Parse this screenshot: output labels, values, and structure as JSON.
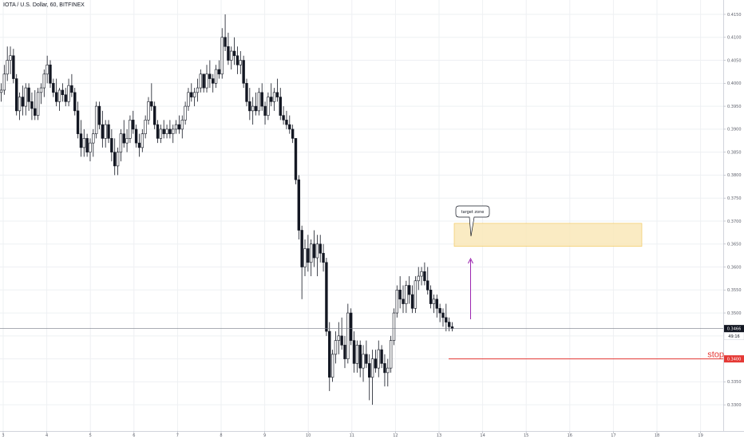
{
  "header": {
    "symbol_title": "IOTA / U.S. Dollar, 60, BITFINEX"
  },
  "annotations": {
    "callout_text": "target zone",
    "stop_text": "stop",
    "last_price": "0.3466",
    "countdown": "49:16",
    "stop_price": "0.3400"
  },
  "colors": {
    "candle": "#131722",
    "target_fill": "#f9e8b8",
    "target_border": "#f0c453",
    "arrow": "#9c27b0",
    "stop": "#e53935",
    "last_price_line": "#787b86",
    "grid": "#eef0f3"
  },
  "chart_data": {
    "type": "candlestick",
    "symbol": "IOTA / U.S. Dollar",
    "interval": "60",
    "exchange": "BITFINEX",
    "y_ticks": [
      0.415,
      0.41,
      0.405,
      0.4,
      0.395,
      0.39,
      0.385,
      0.38,
      0.375,
      0.37,
      0.365,
      0.36,
      0.355,
      0.35,
      0.345,
      0.34,
      0.335,
      0.33
    ],
    "x_ticks": [
      "3",
      "4",
      "5",
      "6",
      "7",
      "8",
      "9",
      "10",
      "11",
      "12",
      "13",
      "14",
      "15",
      "16",
      "17",
      "18",
      "19"
    ],
    "last_price": 0.3466,
    "stop_level": 0.34,
    "target_zone": {
      "low": 0.3645,
      "high": 0.3695
    },
    "candles": [
      {
        "o": 0.398,
        "h": 0.4,
        "l": 0.396,
        "c": 0.3985
      },
      {
        "o": 0.3985,
        "h": 0.404,
        "l": 0.3975,
        "c": 0.402
      },
      {
        "o": 0.402,
        "h": 0.408,
        "l": 0.4005,
        "c": 0.405
      },
      {
        "o": 0.405,
        "h": 0.408,
        "l": 0.402,
        "c": 0.406
      },
      {
        "o": 0.406,
        "h": 0.4075,
        "l": 0.4,
        "c": 0.401
      },
      {
        "o": 0.401,
        "h": 0.402,
        "l": 0.393,
        "c": 0.394
      },
      {
        "o": 0.394,
        "h": 0.398,
        "l": 0.392,
        "c": 0.397
      },
      {
        "o": 0.397,
        "h": 0.3995,
        "l": 0.393,
        "c": 0.395
      },
      {
        "o": 0.395,
        "h": 0.4,
        "l": 0.393,
        "c": 0.399
      },
      {
        "o": 0.399,
        "h": 0.4,
        "l": 0.394,
        "c": 0.396
      },
      {
        "o": 0.396,
        "h": 0.398,
        "l": 0.392,
        "c": 0.3945
      },
      {
        "o": 0.3945,
        "h": 0.3985,
        "l": 0.392,
        "c": 0.393
      },
      {
        "o": 0.393,
        "h": 0.399,
        "l": 0.392,
        "c": 0.398
      },
      {
        "o": 0.398,
        "h": 0.4,
        "l": 0.3955,
        "c": 0.399
      },
      {
        "o": 0.399,
        "h": 0.403,
        "l": 0.397,
        "c": 0.402
      },
      {
        "o": 0.402,
        "h": 0.406,
        "l": 0.4,
        "c": 0.404
      },
      {
        "o": 0.404,
        "h": 0.405,
        "l": 0.399,
        "c": 0.4
      },
      {
        "o": 0.4,
        "h": 0.401,
        "l": 0.397,
        "c": 0.398
      },
      {
        "o": 0.398,
        "h": 0.401,
        "l": 0.395,
        "c": 0.396
      },
      {
        "o": 0.396,
        "h": 0.399,
        "l": 0.394,
        "c": 0.3985
      },
      {
        "o": 0.3985,
        "h": 0.4,
        "l": 0.396,
        "c": 0.3975
      },
      {
        "o": 0.3975,
        "h": 0.399,
        "l": 0.395,
        "c": 0.396
      },
      {
        "o": 0.396,
        "h": 0.401,
        "l": 0.395,
        "c": 0.3995
      },
      {
        "o": 0.3995,
        "h": 0.402,
        "l": 0.397,
        "c": 0.398
      },
      {
        "o": 0.398,
        "h": 0.399,
        "l": 0.393,
        "c": 0.394
      },
      {
        "o": 0.394,
        "h": 0.396,
        "l": 0.388,
        "c": 0.389
      },
      {
        "o": 0.389,
        "h": 0.392,
        "l": 0.384,
        "c": 0.386
      },
      {
        "o": 0.386,
        "h": 0.39,
        "l": 0.384,
        "c": 0.388
      },
      {
        "o": 0.388,
        "h": 0.389,
        "l": 0.384,
        "c": 0.385
      },
      {
        "o": 0.385,
        "h": 0.388,
        "l": 0.383,
        "c": 0.387
      },
      {
        "o": 0.387,
        "h": 0.39,
        "l": 0.384,
        "c": 0.389
      },
      {
        "o": 0.389,
        "h": 0.396,
        "l": 0.388,
        "c": 0.395
      },
      {
        "o": 0.395,
        "h": 0.396,
        "l": 0.39,
        "c": 0.391
      },
      {
        "o": 0.391,
        "h": 0.394,
        "l": 0.386,
        "c": 0.388
      },
      {
        "o": 0.388,
        "h": 0.392,
        "l": 0.386,
        "c": 0.391
      },
      {
        "o": 0.391,
        "h": 0.392,
        "l": 0.387,
        "c": 0.388
      },
      {
        "o": 0.388,
        "h": 0.39,
        "l": 0.383,
        "c": 0.385
      },
      {
        "o": 0.385,
        "h": 0.388,
        "l": 0.38,
        "c": 0.382
      },
      {
        "o": 0.382,
        "h": 0.386,
        "l": 0.38,
        "c": 0.385
      },
      {
        "o": 0.385,
        "h": 0.39,
        "l": 0.383,
        "c": 0.389
      },
      {
        "o": 0.389,
        "h": 0.392,
        "l": 0.386,
        "c": 0.387
      },
      {
        "o": 0.387,
        "h": 0.39,
        "l": 0.385,
        "c": 0.388
      },
      {
        "o": 0.388,
        "h": 0.393,
        "l": 0.387,
        "c": 0.392
      },
      {
        "o": 0.392,
        "h": 0.394,
        "l": 0.389,
        "c": 0.39
      },
      {
        "o": 0.39,
        "h": 0.391,
        "l": 0.386,
        "c": 0.387
      },
      {
        "o": 0.387,
        "h": 0.389,
        "l": 0.384,
        "c": 0.386
      },
      {
        "o": 0.386,
        "h": 0.39,
        "l": 0.385,
        "c": 0.389
      },
      {
        "o": 0.389,
        "h": 0.393,
        "l": 0.388,
        "c": 0.392
      },
      {
        "o": 0.392,
        "h": 0.397,
        "l": 0.391,
        "c": 0.396
      },
      {
        "o": 0.396,
        "h": 0.4,
        "l": 0.394,
        "c": 0.395
      },
      {
        "o": 0.395,
        "h": 0.396,
        "l": 0.39,
        "c": 0.391
      },
      {
        "o": 0.391,
        "h": 0.392,
        "l": 0.387,
        "c": 0.388
      },
      {
        "o": 0.388,
        "h": 0.391,
        "l": 0.387,
        "c": 0.39
      },
      {
        "o": 0.39,
        "h": 0.392,
        "l": 0.388,
        "c": 0.389
      },
      {
        "o": 0.389,
        "h": 0.391,
        "l": 0.388,
        "c": 0.39
      },
      {
        "o": 0.39,
        "h": 0.392,
        "l": 0.388,
        "c": 0.389
      },
      {
        "o": 0.389,
        "h": 0.391,
        "l": 0.387,
        "c": 0.39
      },
      {
        "o": 0.39,
        "h": 0.392,
        "l": 0.389,
        "c": 0.391
      },
      {
        "o": 0.391,
        "h": 0.393,
        "l": 0.389,
        "c": 0.39
      },
      {
        "o": 0.39,
        "h": 0.393,
        "l": 0.388,
        "c": 0.392
      },
      {
        "o": 0.392,
        "h": 0.396,
        "l": 0.391,
        "c": 0.395
      },
      {
        "o": 0.395,
        "h": 0.399,
        "l": 0.394,
        "c": 0.398
      },
      {
        "o": 0.398,
        "h": 0.4,
        "l": 0.396,
        "c": 0.397
      },
      {
        "o": 0.397,
        "h": 0.399,
        "l": 0.395,
        "c": 0.398
      },
      {
        "o": 0.398,
        "h": 0.401,
        "l": 0.396,
        "c": 0.399
      },
      {
        "o": 0.399,
        "h": 0.403,
        "l": 0.398,
        "c": 0.402
      },
      {
        "o": 0.402,
        "h": 0.402,
        "l": 0.398,
        "c": 0.399
      },
      {
        "o": 0.399,
        "h": 0.404,
        "l": 0.398,
        "c": 0.402
      },
      {
        "o": 0.402,
        "h": 0.405,
        "l": 0.399,
        "c": 0.401
      },
      {
        "o": 0.401,
        "h": 0.402,
        "l": 0.398,
        "c": 0.4
      },
      {
        "o": 0.4,
        "h": 0.404,
        "l": 0.399,
        "c": 0.403
      },
      {
        "o": 0.403,
        "h": 0.405,
        "l": 0.401,
        "c": 0.402
      },
      {
        "o": 0.402,
        "h": 0.412,
        "l": 0.401,
        "c": 0.41
      },
      {
        "o": 0.41,
        "h": 0.415,
        "l": 0.407,
        "c": 0.408
      },
      {
        "o": 0.408,
        "h": 0.411,
        "l": 0.404,
        "c": 0.405
      },
      {
        "o": 0.405,
        "h": 0.408,
        "l": 0.403,
        "c": 0.407
      },
      {
        "o": 0.407,
        "h": 0.41,
        "l": 0.404,
        "c": 0.406
      },
      {
        "o": 0.406,
        "h": 0.408,
        "l": 0.402,
        "c": 0.404
      },
      {
        "o": 0.404,
        "h": 0.407,
        "l": 0.402,
        "c": 0.405
      },
      {
        "o": 0.405,
        "h": 0.406,
        "l": 0.399,
        "c": 0.4
      },
      {
        "o": 0.4,
        "h": 0.401,
        "l": 0.395,
        "c": 0.396
      },
      {
        "o": 0.396,
        "h": 0.399,
        "l": 0.392,
        "c": 0.394
      },
      {
        "o": 0.394,
        "h": 0.397,
        "l": 0.391,
        "c": 0.395
      },
      {
        "o": 0.395,
        "h": 0.398,
        "l": 0.393,
        "c": 0.394
      },
      {
        "o": 0.394,
        "h": 0.399,
        "l": 0.393,
        "c": 0.398
      },
      {
        "o": 0.398,
        "h": 0.4,
        "l": 0.394,
        "c": 0.395
      },
      {
        "o": 0.395,
        "h": 0.396,
        "l": 0.391,
        "c": 0.393
      },
      {
        "o": 0.393,
        "h": 0.398,
        "l": 0.392,
        "c": 0.397
      },
      {
        "o": 0.397,
        "h": 0.4,
        "l": 0.395,
        "c": 0.396
      },
      {
        "o": 0.396,
        "h": 0.399,
        "l": 0.394,
        "c": 0.398
      },
      {
        "o": 0.398,
        "h": 0.401,
        "l": 0.396,
        "c": 0.397
      },
      {
        "o": 0.397,
        "h": 0.399,
        "l": 0.392,
        "c": 0.393
      },
      {
        "o": 0.393,
        "h": 0.395,
        "l": 0.391,
        "c": 0.392
      },
      {
        "o": 0.392,
        "h": 0.394,
        "l": 0.39,
        "c": 0.391
      },
      {
        "o": 0.391,
        "h": 0.393,
        "l": 0.389,
        "c": 0.39
      },
      {
        "o": 0.39,
        "h": 0.391,
        "l": 0.387,
        "c": 0.388
      },
      {
        "o": 0.388,
        "h": 0.388,
        "l": 0.378,
        "c": 0.379
      },
      {
        "o": 0.379,
        "h": 0.38,
        "l": 0.366,
        "c": 0.368
      },
      {
        "o": 0.368,
        "h": 0.369,
        "l": 0.353,
        "c": 0.36
      },
      {
        "o": 0.36,
        "h": 0.366,
        "l": 0.358,
        "c": 0.364
      },
      {
        "o": 0.364,
        "h": 0.367,
        "l": 0.359,
        "c": 0.361
      },
      {
        "o": 0.361,
        "h": 0.366,
        "l": 0.358,
        "c": 0.365
      },
      {
        "o": 0.365,
        "h": 0.368,
        "l": 0.36,
        "c": 0.362
      },
      {
        "o": 0.362,
        "h": 0.367,
        "l": 0.358,
        "c": 0.365
      },
      {
        "o": 0.365,
        "h": 0.367,
        "l": 0.361,
        "c": 0.363
      },
      {
        "o": 0.363,
        "h": 0.365,
        "l": 0.359,
        "c": 0.361
      },
      {
        "o": 0.361,
        "h": 0.362,
        "l": 0.345,
        "c": 0.346
      },
      {
        "o": 0.346,
        "h": 0.348,
        "l": 0.333,
        "c": 0.336
      },
      {
        "o": 0.336,
        "h": 0.342,
        "l": 0.335,
        "c": 0.341
      },
      {
        "o": 0.341,
        "h": 0.346,
        "l": 0.339,
        "c": 0.344
      },
      {
        "o": 0.344,
        "h": 0.348,
        "l": 0.341,
        "c": 0.345
      },
      {
        "o": 0.345,
        "h": 0.349,
        "l": 0.342,
        "c": 0.343
      },
      {
        "o": 0.343,
        "h": 0.345,
        "l": 0.338,
        "c": 0.34
      },
      {
        "o": 0.34,
        "h": 0.352,
        "l": 0.339,
        "c": 0.35
      },
      {
        "o": 0.35,
        "h": 0.351,
        "l": 0.343,
        "c": 0.344
      },
      {
        "o": 0.344,
        "h": 0.346,
        "l": 0.337,
        "c": 0.339
      },
      {
        "o": 0.339,
        "h": 0.344,
        "l": 0.337,
        "c": 0.343
      },
      {
        "o": 0.343,
        "h": 0.344,
        "l": 0.336,
        "c": 0.338
      },
      {
        "o": 0.338,
        "h": 0.343,
        "l": 0.335,
        "c": 0.341
      },
      {
        "o": 0.341,
        "h": 0.344,
        "l": 0.338,
        "c": 0.339
      },
      {
        "o": 0.339,
        "h": 0.341,
        "l": 0.331,
        "c": 0.336
      },
      {
        "o": 0.336,
        "h": 0.342,
        "l": 0.33,
        "c": 0.34
      },
      {
        "o": 0.34,
        "h": 0.342,
        "l": 0.337,
        "c": 0.338
      },
      {
        "o": 0.338,
        "h": 0.344,
        "l": 0.336,
        "c": 0.342
      },
      {
        "o": 0.342,
        "h": 0.343,
        "l": 0.338,
        "c": 0.339
      },
      {
        "o": 0.339,
        "h": 0.341,
        "l": 0.334,
        "c": 0.337
      },
      {
        "o": 0.337,
        "h": 0.34,
        "l": 0.334,
        "c": 0.338
      },
      {
        "o": 0.338,
        "h": 0.345,
        "l": 0.337,
        "c": 0.344
      },
      {
        "o": 0.344,
        "h": 0.351,
        "l": 0.343,
        "c": 0.35
      },
      {
        "o": 0.35,
        "h": 0.356,
        "l": 0.349,
        "c": 0.355
      },
      {
        "o": 0.355,
        "h": 0.358,
        "l": 0.351,
        "c": 0.353
      },
      {
        "o": 0.353,
        "h": 0.356,
        "l": 0.35,
        "c": 0.352
      },
      {
        "o": 0.352,
        "h": 0.357,
        "l": 0.35,
        "c": 0.356
      },
      {
        "o": 0.356,
        "h": 0.358,
        "l": 0.352,
        "c": 0.354
      },
      {
        "o": 0.354,
        "h": 0.356,
        "l": 0.35,
        "c": 0.351
      },
      {
        "o": 0.351,
        "h": 0.358,
        "l": 0.35,
        "c": 0.357
      },
      {
        "o": 0.357,
        "h": 0.36,
        "l": 0.355,
        "c": 0.358
      },
      {
        "o": 0.358,
        "h": 0.36,
        "l": 0.356,
        "c": 0.359
      },
      {
        "o": 0.359,
        "h": 0.361,
        "l": 0.356,
        "c": 0.357
      },
      {
        "o": 0.357,
        "h": 0.36,
        "l": 0.354,
        "c": 0.355
      },
      {
        "o": 0.355,
        "h": 0.356,
        "l": 0.351,
        "c": 0.352
      },
      {
        "o": 0.352,
        "h": 0.354,
        "l": 0.35,
        "c": 0.353
      },
      {
        "o": 0.353,
        "h": 0.354,
        "l": 0.349,
        "c": 0.351
      },
      {
        "o": 0.351,
        "h": 0.352,
        "l": 0.348,
        "c": 0.35
      },
      {
        "o": 0.35,
        "h": 0.351,
        "l": 0.347,
        "c": 0.349
      },
      {
        "o": 0.349,
        "h": 0.352,
        "l": 0.346,
        "c": 0.348
      },
      {
        "o": 0.348,
        "h": 0.349,
        "l": 0.346,
        "c": 0.347
      },
      {
        "o": 0.347,
        "h": 0.348,
        "l": 0.346,
        "c": 0.3466
      }
    ]
  }
}
